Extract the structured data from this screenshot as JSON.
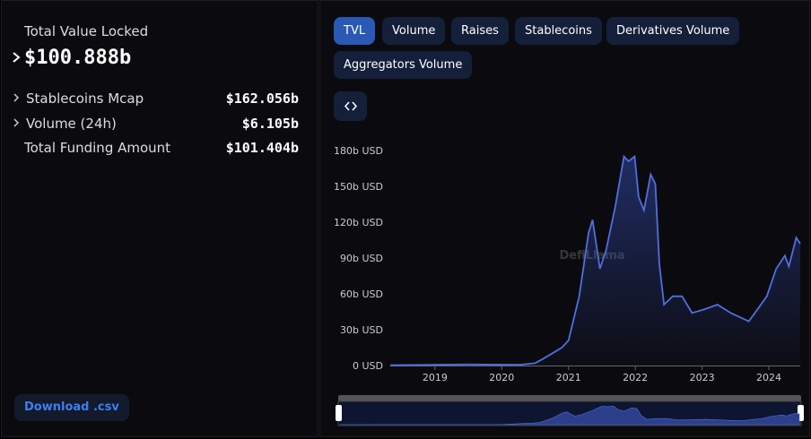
{
  "summary": {
    "title": "Total Value Locked",
    "value": "$100.888b",
    "rows": [
      {
        "label": "Stablecoins Mcap",
        "value": "$162.056b"
      },
      {
        "label": "Volume (24h)",
        "value": "$6.105b"
      },
      {
        "label": "Total Funding Amount",
        "value": "$101.404b"
      }
    ],
    "download": "Download .csv"
  },
  "tabs": [
    "TVL",
    "Volume",
    "Raises",
    "Stablecoins",
    "Derivatives Volume",
    "Aggregators Volume"
  ],
  "watermark": "DefiLlama",
  "chart_data": {
    "type": "area",
    "x": [
      2018.33,
      2019.0,
      2019.5,
      2020.0,
      2020.3,
      2020.5,
      2020.6,
      2020.75,
      2020.9,
      2021.0,
      2021.16,
      2021.3,
      2021.36,
      2021.47,
      2021.56,
      2021.7,
      2021.83,
      2021.9,
      2021.99,
      2022.05,
      2022.13,
      2022.23,
      2022.3,
      2022.36,
      2022.43,
      2022.56,
      2022.7,
      2022.85,
      2023.03,
      2023.23,
      2023.43,
      2023.7,
      2023.83,
      2023.97,
      2024.11,
      2024.24,
      2024.3,
      2024.41,
      2024.47
    ],
    "series": [
      {
        "name": "TVL",
        "color": "#4f6fe0",
        "values": [
          300000000.0,
          600000000.0,
          900000000.0,
          700000000.0,
          800000000.0,
          2000000000.0,
          5000000000.0,
          10000000000.0,
          15000000000.0,
          21000000000.0,
          58000000000.0,
          111000000000.0,
          122000000000.0,
          81000000000.0,
          96000000000.0,
          133000000000.0,
          175000000000.0,
          171000000000.0,
          175000000000.0,
          141000000000.0,
          130000000000.0,
          160000000000.0,
          152000000000.0,
          85000000000.0,
          51000000000.0,
          58000000000.0,
          58000000000.0,
          44000000000.0,
          47000000000.0,
          51000000000.0,
          44000000000.0,
          37000000000.0,
          47000000000.0,
          58000000000.0,
          81000000000.0,
          92000000000.0,
          83000000000.0,
          107000000000.0,
          102000000000.0
        ]
      }
    ],
    "xlim": [
      2018.33,
      2024.47
    ],
    "xticks": [
      2019,
      2020,
      2021,
      2022,
      2023,
      2024
    ],
    "ylim": [
      0,
      187500000000.0
    ],
    "yticks": [
      {
        "value": 0,
        "label": "0 USD"
      },
      {
        "value": 30000000000.0,
        "label": "30b USD"
      },
      {
        "value": 60000000000.0,
        "label": "60b USD"
      },
      {
        "value": 90000000000.0,
        "label": "90b USD"
      },
      {
        "value": 120000000000.0,
        "label": "120b USD"
      },
      {
        "value": 150000000000.0,
        "label": "150b USD"
      },
      {
        "value": 180000000000.0,
        "label": "180b USD"
      }
    ],
    "grid": false
  }
}
